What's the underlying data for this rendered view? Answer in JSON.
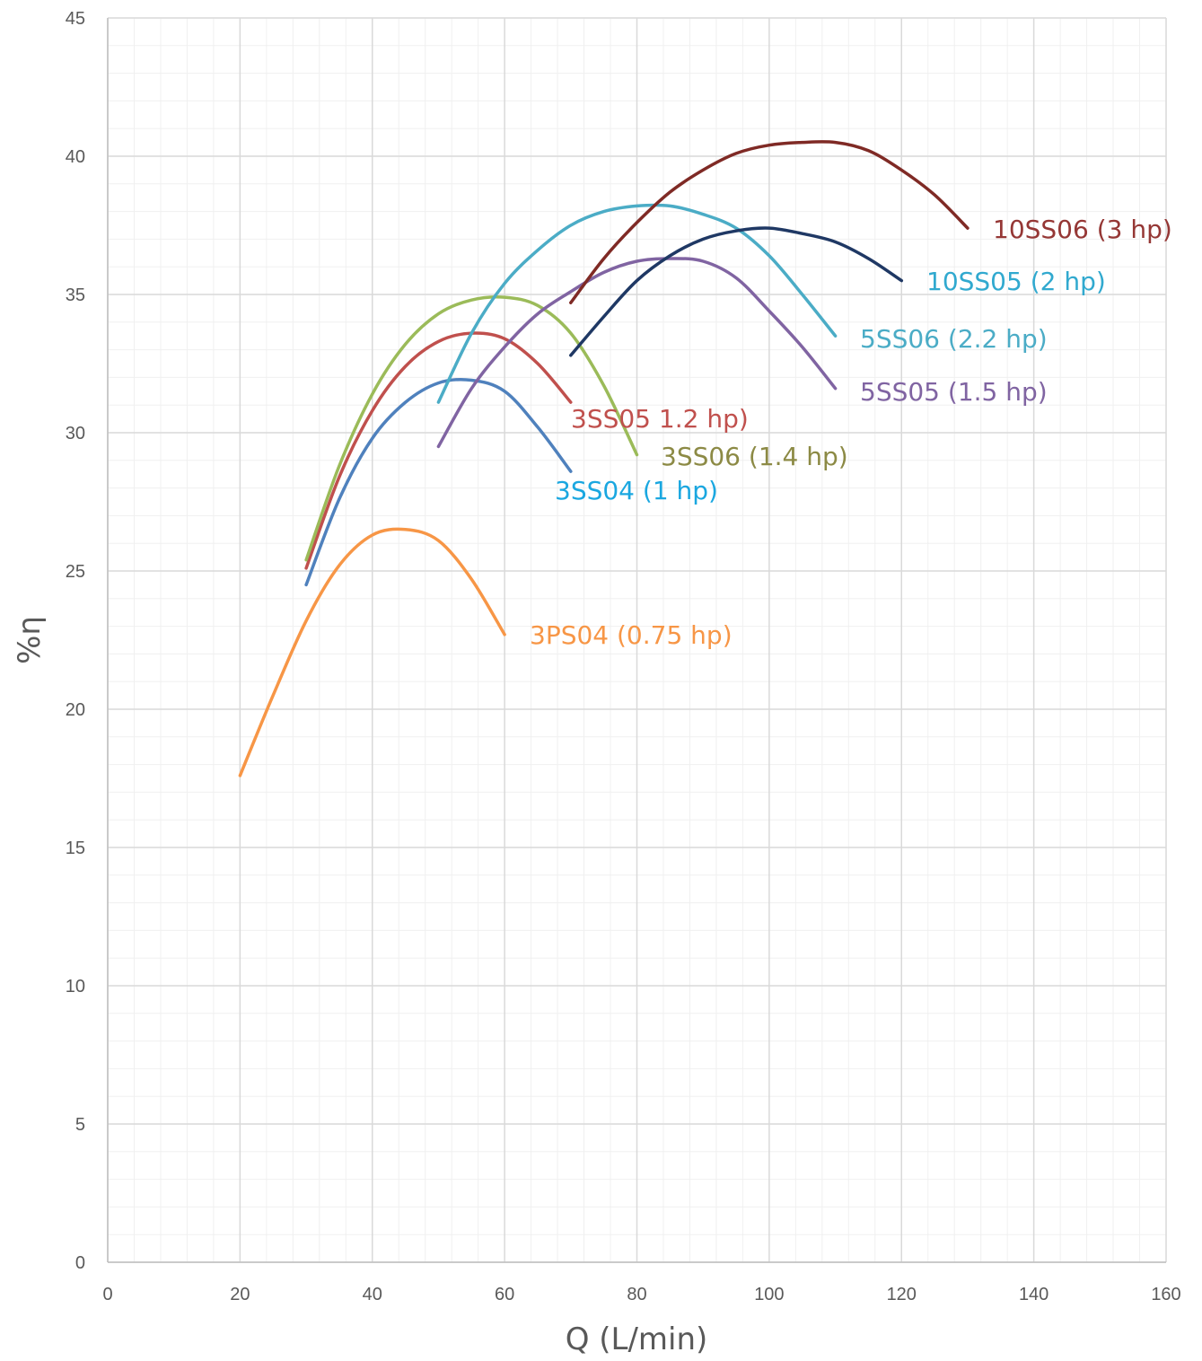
{
  "chart_data": {
    "type": "line",
    "title": "",
    "xlabel": "Q (L/min)",
    "ylabel": "%η",
    "xlim": [
      0,
      160
    ],
    "ylim": [
      0,
      45
    ],
    "xticks": [
      0,
      20,
      40,
      60,
      80,
      100,
      120,
      140,
      160
    ],
    "yticks": [
      0,
      5,
      10,
      15,
      20,
      25,
      30,
      35,
      40,
      45
    ],
    "grid": true,
    "minor_grid": true,
    "legend": "none (series labels placed at curve ends)",
    "series": [
      {
        "name": "3PS04 (0.75 hp)",
        "color": "#f79646",
        "x": [
          20,
          25,
          30,
          35,
          40,
          45,
          50,
          55,
          60
        ],
        "y": [
          17.6,
          20.5,
          23.2,
          25.2,
          26.3,
          26.5,
          26.1,
          24.7,
          22.7
        ]
      },
      {
        "name": "3SS04 (1 hp)",
        "color": "#4f81bd",
        "label_color": "#1aa7e0",
        "x": [
          30,
          35,
          40,
          45,
          50,
          55,
          60,
          65,
          70
        ],
        "y": [
          24.5,
          27.6,
          29.8,
          31.1,
          31.8,
          31.9,
          31.5,
          30.2,
          28.6
        ]
      },
      {
        "name": "3SS05 1.2 hp)",
        "color": "#c0504d",
        "x": [
          30,
          35,
          40,
          45,
          50,
          55,
          60,
          65,
          70
        ],
        "y": [
          25.1,
          28.4,
          30.8,
          32.4,
          33.3,
          33.6,
          33.4,
          32.5,
          31.1
        ]
      },
      {
        "name": "3SS06 (1.4 hp)",
        "color": "#9bbb59",
        "label_color": "#8c8a45",
        "x": [
          30,
          35,
          40,
          45,
          50,
          55,
          60,
          65,
          70,
          75,
          80
        ],
        "y": [
          25.4,
          28.8,
          31.4,
          33.2,
          34.3,
          34.8,
          34.9,
          34.6,
          33.6,
          31.7,
          29.2
        ]
      },
      {
        "name": "5SS05 (1.5 hp)",
        "color": "#8064a2",
        "x": [
          50,
          55,
          60,
          65,
          70,
          75,
          80,
          85,
          90,
          95,
          100,
          105,
          110
        ],
        "y": [
          29.5,
          31.6,
          33.1,
          34.3,
          35.1,
          35.8,
          36.2,
          36.3,
          36.2,
          35.6,
          34.4,
          33.1,
          31.6
        ]
      },
      {
        "name": "5SS06 (2.2 hp)",
        "color": "#4bacc6",
        "x": [
          50,
          55,
          60,
          65,
          70,
          75,
          80,
          85,
          90,
          95,
          100,
          105,
          110
        ],
        "y": [
          31.1,
          33.6,
          35.4,
          36.6,
          37.5,
          38.0,
          38.2,
          38.2,
          37.9,
          37.4,
          36.4,
          35.0,
          33.5
        ]
      },
      {
        "name": "10SS05 (2 hp)",
        "color": "#1f3864",
        "label_color": "#31a9cf",
        "x": [
          70,
          75,
          80,
          85,
          90,
          95,
          100,
          105,
          110,
          115,
          120
        ],
        "y": [
          32.8,
          34.2,
          35.5,
          36.4,
          37.0,
          37.3,
          37.4,
          37.2,
          36.9,
          36.3,
          35.5
        ]
      },
      {
        "name": "10SS06 (3 hp)",
        "color": "#7f2a25",
        "label_color": "#953735",
        "x": [
          70,
          75,
          80,
          85,
          90,
          95,
          100,
          105,
          110,
          115,
          120,
          125,
          130
        ],
        "y": [
          34.7,
          36.3,
          37.6,
          38.7,
          39.5,
          40.1,
          40.4,
          40.5,
          40.5,
          40.2,
          39.5,
          38.6,
          37.4
        ]
      }
    ]
  }
}
